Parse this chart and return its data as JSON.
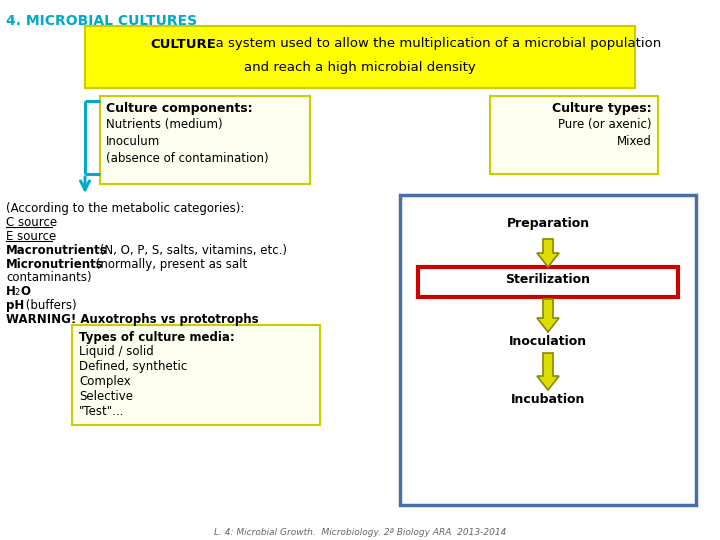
{
  "title": "4. MICROBIAL CULTURES",
  "title_color": "#00AACC",
  "bg_color": "#FFFFFF",
  "culture_box_bg": "#FFFF00",
  "culture_box_border": "#CCCC00",
  "culture_bold": "CULTURE",
  "culture_rest": ": a system used to allow the multiplication of a microbial population",
  "culture_line2": "and reach a high microbial density",
  "comp_title": "Culture components:",
  "comp_lines": [
    "Nutrients (medium)",
    "Inoculum",
    "(absence of contamination)"
  ],
  "types_title": "Culture types:",
  "types_lines": [
    "Pure (or axenic)",
    "Mixed"
  ],
  "box_border": "#CCCC00",
  "box_bg": "#FFFFF0",
  "blue_arrow": "#00AACC",
  "met_line0": "(According to the metabolic categories):",
  "met_c": "C source",
  "met_e": "E source",
  "met_macro_bold": "Macronutrients",
  "met_macro_rest": " (N, O, P, S, salts, vitamins, etc.)",
  "met_micro_bold": "Micronutrients",
  "met_micro_rest": " (normally, present as salt",
  "met_micro_rest2": "contaminants)",
  "met_h2o_h": "H",
  "met_h2o_2": "2",
  "met_h2o_o": "O",
  "met_ph_bold": "pH",
  "met_ph_rest": " (buffers)",
  "met_warning": "WARNING! Auxotrophs vs prototrophs",
  "media_title": "Types of culture media:",
  "media_lines": [
    "Liquid / solid",
    "Defined, synthetic",
    "Complex",
    "Selective",
    "\"Test\"..."
  ],
  "flow_border": "#4A6FA5",
  "flow_bg": "#FFFFFF",
  "steril_border": "#CC0000",
  "arrow_fill": "#DDDD00",
  "arrow_edge": "#888800",
  "steps": [
    "Preparation",
    "Sterilization",
    "Inoculation",
    "Incubation"
  ],
  "footer": "L. 4: Microbial Growth.  Microbiology. 2ª Biology ARA  2013-2014"
}
